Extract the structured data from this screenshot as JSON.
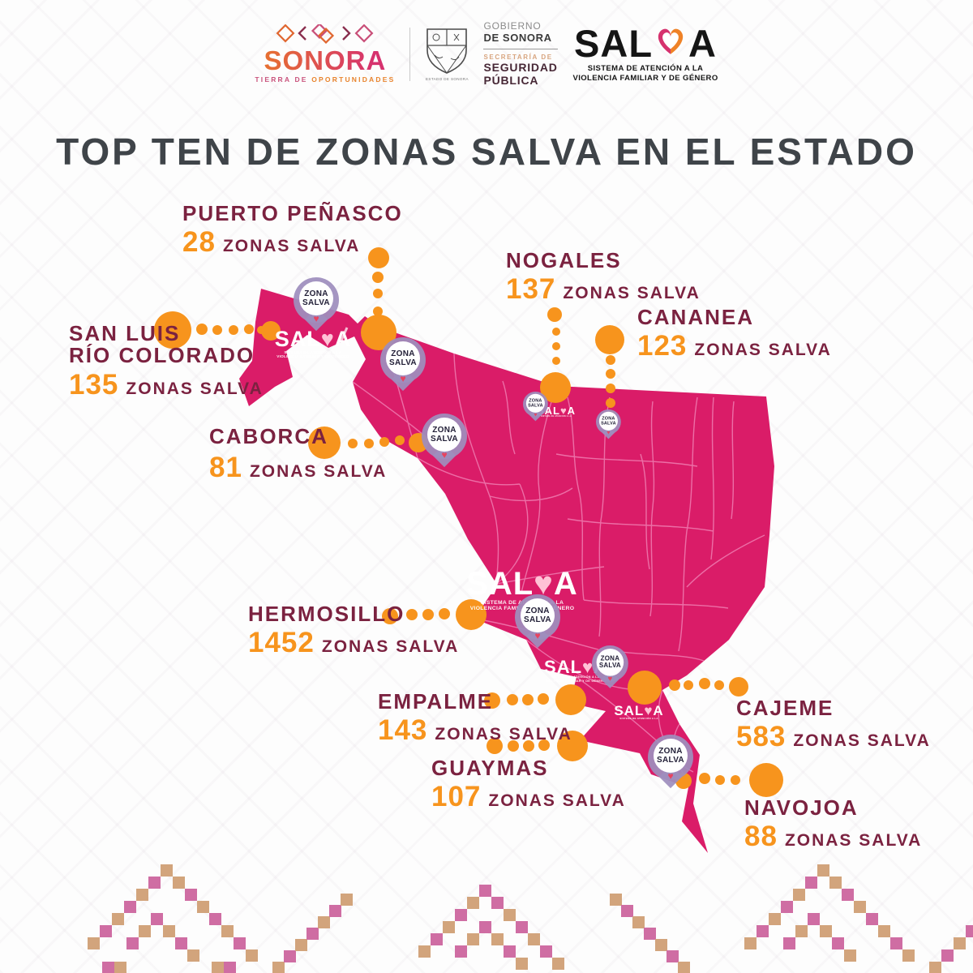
{
  "header": {
    "sonora": {
      "name": "SONORA",
      "tagline_1": "TIERRA DE",
      "tagline_2": "OPORTUNIDADES"
    },
    "gov": {
      "line1": "GOBIERNO",
      "line2": "DE SONORA",
      "line3": "SECRETARÍA DE",
      "line4": "SEGURIDAD",
      "line5": "PÚBLICA",
      "seal_caption": "ESTADO DE SONORA"
    },
    "salva": {
      "word_start": "SAL",
      "word_end": "A",
      "sub1": "SISTEMA DE ATENCIÓN A LA",
      "sub2": "VIOLENCIA FAMILIAR Y DE GÉNERO"
    }
  },
  "title": "TOP TEN DE ZONAS SALVA EN EL ESTADO",
  "cities": [
    {
      "id": "puerto-penasco",
      "name": "PUERTO PEÑASCO",
      "count": "28",
      "unit": "ZONAS SALVA"
    },
    {
      "id": "nogales",
      "name": "NOGALES",
      "count": "137",
      "unit": "ZONAS SALVA"
    },
    {
      "id": "cananea",
      "name": "CANANEA",
      "count": "123",
      "unit": "ZONAS SALVA"
    },
    {
      "id": "san-luis-rio-colorado",
      "name_line1": "SAN LUIS",
      "name_line2": "RÍO COLORADO",
      "count": "135",
      "unit": "ZONAS SALVA"
    },
    {
      "id": "caborca",
      "name": "CABORCA",
      "count": "81",
      "unit": "ZONAS SALVA"
    },
    {
      "id": "hermosillo",
      "name": "HERMOSILLO",
      "count": "1452",
      "unit": "ZONAS SALVA"
    },
    {
      "id": "empalme",
      "name": "EMPALME",
      "count": "143",
      "unit": "ZONAS SALVA"
    },
    {
      "id": "guaymas",
      "name": "GUAYMAS",
      "count": "107",
      "unit": "ZONAS SALVA"
    },
    {
      "id": "cajeme",
      "name": "CAJEME",
      "count": "583",
      "unit": "ZONAS SALVA"
    },
    {
      "id": "navojoa",
      "name": "NAVOJOA",
      "count": "88",
      "unit": "ZONAS SALVA"
    }
  ],
  "map": {
    "pin": {
      "line1": "ZONA",
      "line2": "SALVA"
    },
    "watermark": {
      "word_start": "SAL",
      "word_end": "A",
      "sub1": "SISTEMA DE ATENCIÓN A LA",
      "sub2": "VIOLENCIA FAMILIAR Y DE GÉNERO"
    }
  },
  "icons": {
    "heart": "♥"
  },
  "colors": {
    "map_pink": "#DA1C68",
    "border_light": "#F183B6",
    "accent_orange": "#F7941D",
    "label_maroon": "#7B2240",
    "title_gray": "#3F4449",
    "pin_lavender": "#9E8EBD",
    "pattern_tan": "#D2A47C",
    "pattern_pink": "#CF6DA3"
  }
}
